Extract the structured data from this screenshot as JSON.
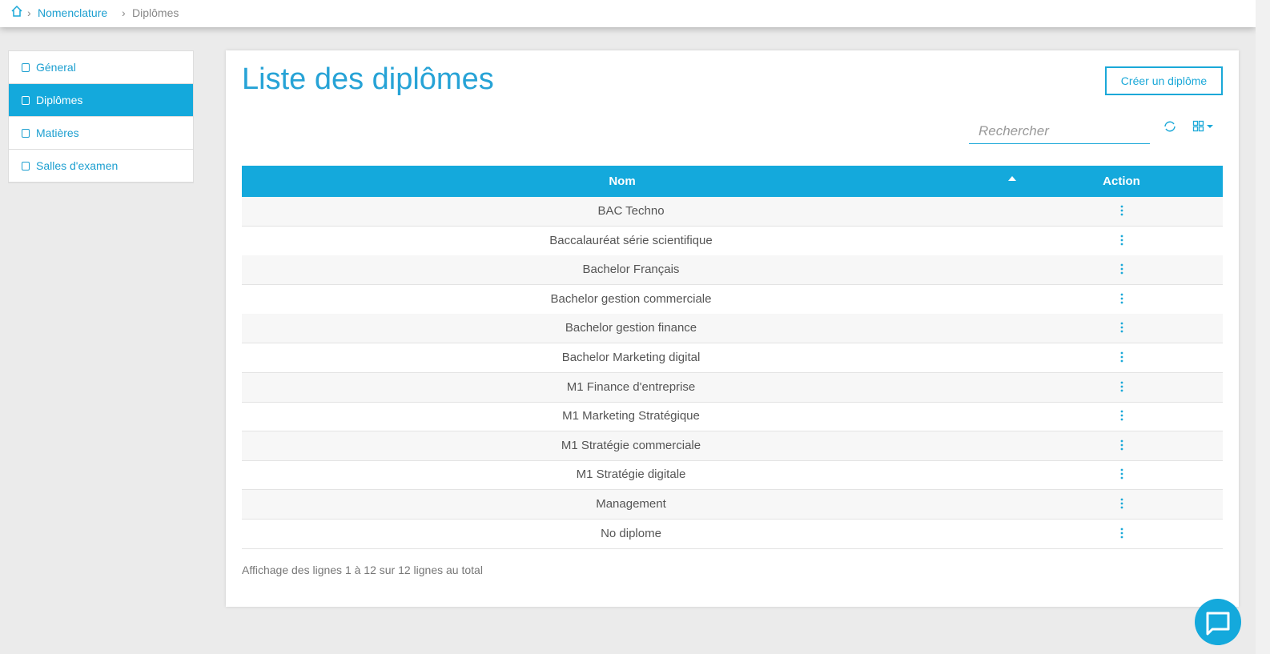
{
  "breadcrumb": {
    "items": [
      "Nomenclature",
      "Diplômes"
    ]
  },
  "sidebar": {
    "items": [
      "Géneral",
      "Diplômes",
      "Matières",
      "Salles d'examen"
    ],
    "active": 1
  },
  "page": {
    "title": "Liste des diplômes",
    "create_button": "Créer un diplôme",
    "search_placeholder": "Rechercher"
  },
  "table": {
    "columns": [
      "Nom",
      "Action"
    ],
    "rows": [
      "BAC Techno",
      "Baccalauréat série scientifique",
      "Bachelor Français",
      "Bachelor gestion commerciale",
      "Bachelor gestion finance",
      "Bachelor Marketing digital",
      "M1 Finance d'entreprise",
      "M1 Marketing Stratégique",
      "M1 Stratégie commerciale",
      "M1 Stratégie digitale",
      "Management",
      "No diplome"
    ],
    "footer": "Affichage des lignes 1 à 12 sur 12 lignes au total"
  }
}
